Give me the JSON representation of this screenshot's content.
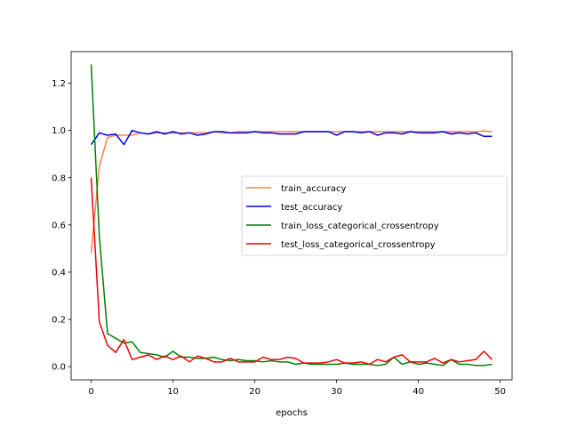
{
  "chart_data": {
    "type": "line",
    "title": "",
    "xlabel": "epochs",
    "ylabel": "",
    "xlim": [
      -2.45,
      51.45
    ],
    "ylim": [
      -0.056,
      1.334
    ],
    "xticks": [
      0,
      10,
      20,
      30,
      40,
      50
    ],
    "yticks": [
      0.0,
      0.2,
      0.4,
      0.6,
      0.8,
      1.0,
      1.2
    ],
    "ytick_labels": [
      "0.0",
      "0.2",
      "0.4",
      "0.6",
      "0.8",
      "1.0",
      "1.2"
    ],
    "grid": false,
    "legend_position": "center-right",
    "x": [
      0,
      1,
      2,
      3,
      4,
      5,
      6,
      7,
      8,
      9,
      10,
      11,
      12,
      13,
      14,
      15,
      16,
      17,
      18,
      19,
      20,
      21,
      22,
      23,
      24,
      25,
      26,
      27,
      28,
      29,
      30,
      31,
      32,
      33,
      34,
      35,
      36,
      37,
      38,
      39,
      40,
      41,
      42,
      43,
      44,
      45,
      46,
      47,
      48,
      49
    ],
    "series": [
      {
        "name": "train_accuracy",
        "color": "#ff7f50",
        "values": [
          0.48,
          0.85,
          0.97,
          0.98,
          0.98,
          0.98,
          0.99,
          0.985,
          0.99,
          0.99,
          0.99,
          0.99,
          0.99,
          0.99,
          0.99,
          0.995,
          0.99,
          0.99,
          0.995,
          0.995,
          0.995,
          0.995,
          0.995,
          0.995,
          0.995,
          0.995,
          0.995,
          0.995,
          0.995,
          0.995,
          0.995,
          0.995,
          0.995,
          0.995,
          0.995,
          0.995,
          0.995,
          0.995,
          0.995,
          0.995,
          0.995,
          0.995,
          0.995,
          0.995,
          0.995,
          0.995,
          0.995,
          0.995,
          0.998,
          0.995
        ]
      },
      {
        "name": "test_accuracy",
        "color": "#0000ee",
        "values": [
          0.94,
          0.99,
          0.98,
          0.985,
          0.94,
          1.0,
          0.99,
          0.985,
          0.995,
          0.985,
          0.995,
          0.985,
          0.99,
          0.98,
          0.985,
          0.995,
          0.995,
          0.99,
          0.99,
          0.99,
          0.995,
          0.99,
          0.99,
          0.985,
          0.985,
          0.985,
          0.995,
          0.995,
          0.995,
          0.995,
          0.98,
          0.995,
          0.995,
          0.99,
          0.995,
          0.98,
          0.99,
          0.99,
          0.985,
          0.995,
          0.99,
          0.99,
          0.99,
          0.995,
          0.985,
          0.99,
          0.985,
          0.99,
          0.975,
          0.975
        ]
      },
      {
        "name": "train_loss_categorical_crossentropy",
        "color": "#008000",
        "values": [
          1.28,
          0.55,
          0.14,
          0.12,
          0.1,
          0.105,
          0.06,
          0.055,
          0.05,
          0.04,
          0.065,
          0.04,
          0.04,
          0.035,
          0.035,
          0.04,
          0.03,
          0.025,
          0.03,
          0.025,
          0.025,
          0.02,
          0.025,
          0.02,
          0.02,
          0.01,
          0.015,
          0.01,
          0.01,
          0.01,
          0.01,
          0.015,
          0.01,
          0.01,
          0.01,
          0.005,
          0.01,
          0.04,
          0.01,
          0.02,
          0.01,
          0.015,
          0.01,
          0.005,
          0.03,
          0.01,
          0.01,
          0.005,
          0.005,
          0.01
        ]
      },
      {
        "name": "test_loss_categorical_crossentropy",
        "color": "#ee0000",
        "values": [
          0.8,
          0.19,
          0.09,
          0.06,
          0.115,
          0.03,
          0.04,
          0.05,
          0.03,
          0.045,
          0.03,
          0.045,
          0.02,
          0.045,
          0.035,
          0.02,
          0.02,
          0.035,
          0.02,
          0.02,
          0.02,
          0.04,
          0.03,
          0.03,
          0.04,
          0.035,
          0.015,
          0.015,
          0.015,
          0.02,
          0.03,
          0.015,
          0.015,
          0.02,
          0.01,
          0.03,
          0.02,
          0.04,
          0.05,
          0.02,
          0.02,
          0.02,
          0.035,
          0.015,
          0.03,
          0.02,
          0.025,
          0.03,
          0.065,
          0.03
        ]
      }
    ]
  }
}
